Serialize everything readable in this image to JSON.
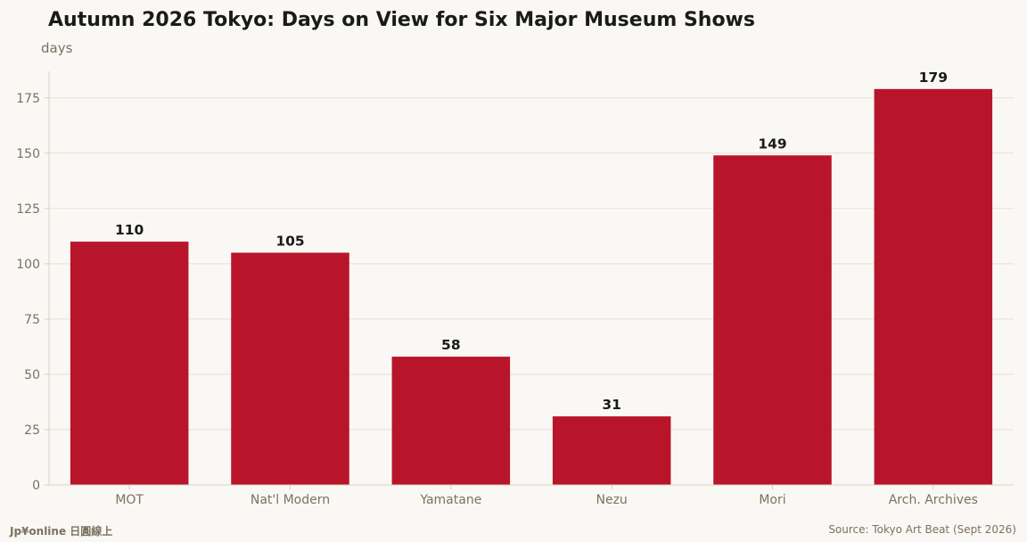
{
  "title": "Autumn 2026 Tokyo: Days on View for Six Major Museum Shows",
  "unit_label": "days",
  "footer": {
    "brand": "Jp¥online 日圓線上",
    "source": "Source: Tokyo Art Beat (Sept 2026)"
  },
  "colors": {
    "bar": "#b8152b",
    "background": "#faf8f5",
    "grid": "#ecdcd6",
    "axis": "#d8cfc4",
    "tick_text": "#7a7260"
  },
  "chart_data": {
    "type": "bar",
    "title": "Autumn 2026 Tokyo: Days on View for Six Major Museum Shows",
    "ylabel": "days",
    "xlabel": "",
    "categories": [
      "MOT",
      "Nat'l Modern",
      "Yamatane",
      "Nezu",
      "Mori",
      "Arch. Archives"
    ],
    "values": [
      110,
      105,
      58,
      31,
      149,
      179
    ],
    "ylim": [
      0,
      187
    ],
    "yticks": [
      0,
      25,
      50,
      75,
      100,
      125,
      150,
      175
    ],
    "grid": true,
    "data_labels": true
  }
}
